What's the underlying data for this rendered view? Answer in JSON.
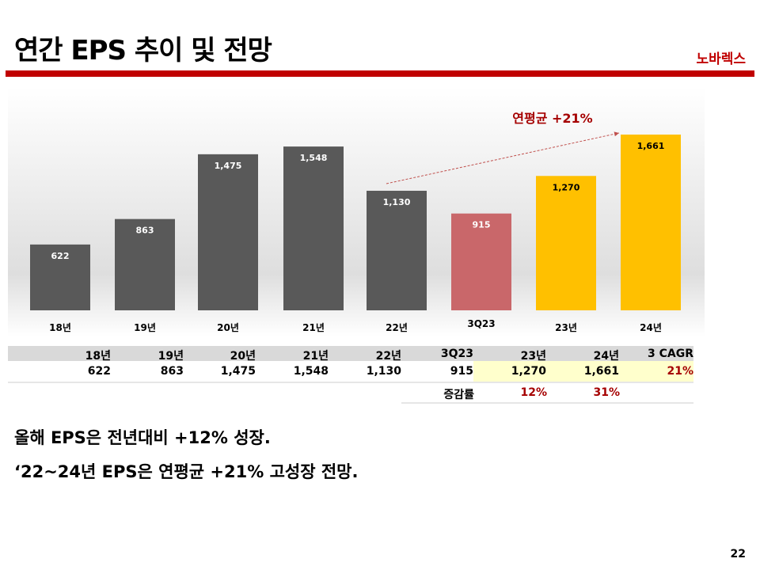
{
  "header": {
    "title": "연간 EPS 추이 및 전망",
    "brand": "노바렉스"
  },
  "chart_data": {
    "type": "bar",
    "categories": [
      "18년",
      "19년",
      "20년",
      "21년",
      "22년",
      "3Q23",
      "23년",
      "24년"
    ],
    "values": [
      622,
      863,
      1475,
      1548,
      1130,
      915,
      1270,
      1661
    ],
    "value_labels": [
      "622",
      "863",
      "1,475",
      "1,548",
      "1,130",
      "915",
      "1,270",
      "1,661"
    ],
    "bar_colors": [
      "#595959",
      "#595959",
      "#595959",
      "#595959",
      "#595959",
      "#c9676a",
      "#ffc000",
      "#ffc000"
    ],
    "annotation": "연평균 +21%",
    "ylim": [
      0,
      1661
    ],
    "xlabel": "",
    "ylabel": "",
    "title": ""
  },
  "table": {
    "headers": [
      "18년",
      "19년",
      "20년",
      "21년",
      "22년",
      "3Q23",
      "23년",
      "24년",
      "3 CAGR"
    ],
    "values": [
      "622",
      "863",
      "1,475",
      "1,548",
      "1,130",
      "915",
      "1,270",
      "1,661",
      "21%"
    ],
    "change_label": "증감률",
    "changes": [
      "12%",
      "31%"
    ]
  },
  "comments": [
    "올해 EPS은 전년대비 +12% 성장.",
    "‘22~24년 EPS은 연평균 +21% 고성장 전망."
  ],
  "page": "22"
}
